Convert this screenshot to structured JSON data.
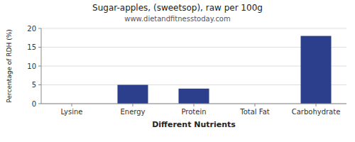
{
  "chart_data": {
    "type": "bar",
    "title": "Sugar-apples, (sweetsop), raw per 100g",
    "subtitle": "www.dietandfitnesstoday.com",
    "xlabel": "Different Nutrients",
    "ylabel": "Percentage of RDH (%)",
    "categories": [
      "Lysine",
      "Energy",
      "Protein",
      "Total Fat",
      "Carbohydrate"
    ],
    "values": [
      0,
      5,
      4,
      0,
      18
    ],
    "color": "#2b3f8c",
    "ylim": [
      0,
      20
    ],
    "yticks": [
      0,
      5,
      10,
      15,
      20
    ],
    "grid": true
  }
}
